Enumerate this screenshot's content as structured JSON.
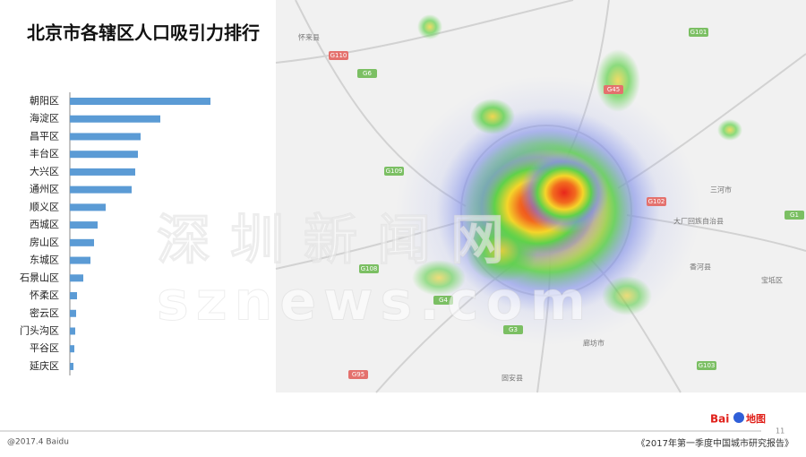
{
  "chart_data": {
    "type": "bar",
    "orientation": "horizontal",
    "title": "北京市各辖区人口吸引力排行",
    "categories": [
      "朝阳区",
      "海淀区",
      "昌平区",
      "丰台区",
      "大兴区",
      "通州区",
      "顺义区",
      "西城区",
      "房山区",
      "东城区",
      "石景山区",
      "怀柔区",
      "密云区",
      "门头沟区",
      "平谷区",
      "延庆区"
    ],
    "values": [
      157,
      101,
      79,
      76,
      73,
      69,
      40,
      31,
      27,
      23,
      15,
      8,
      7,
      6,
      5,
      4
    ],
    "color": "#5b9bd5"
  },
  "map": {
    "places": [
      "怀来县",
      "三河市",
      "大厂回族自治县",
      "香河县",
      "宝坻区",
      "廊坊市",
      "固安县"
    ],
    "shields": [
      "G110",
      "G6",
      "G101",
      "G45",
      "G109",
      "G108",
      "G102",
      "G1",
      "G4",
      "G95",
      "G3",
      "G103"
    ]
  },
  "watermark": {
    "cn": "深圳新闻网",
    "en": "sznews.com"
  },
  "footer": {
    "copyright": "@2017.4 Baidu",
    "report": "《2017年第一季度中国城市研究报告》",
    "page": "11",
    "logo_en": "Bai",
    "logo_cn": "地图"
  }
}
